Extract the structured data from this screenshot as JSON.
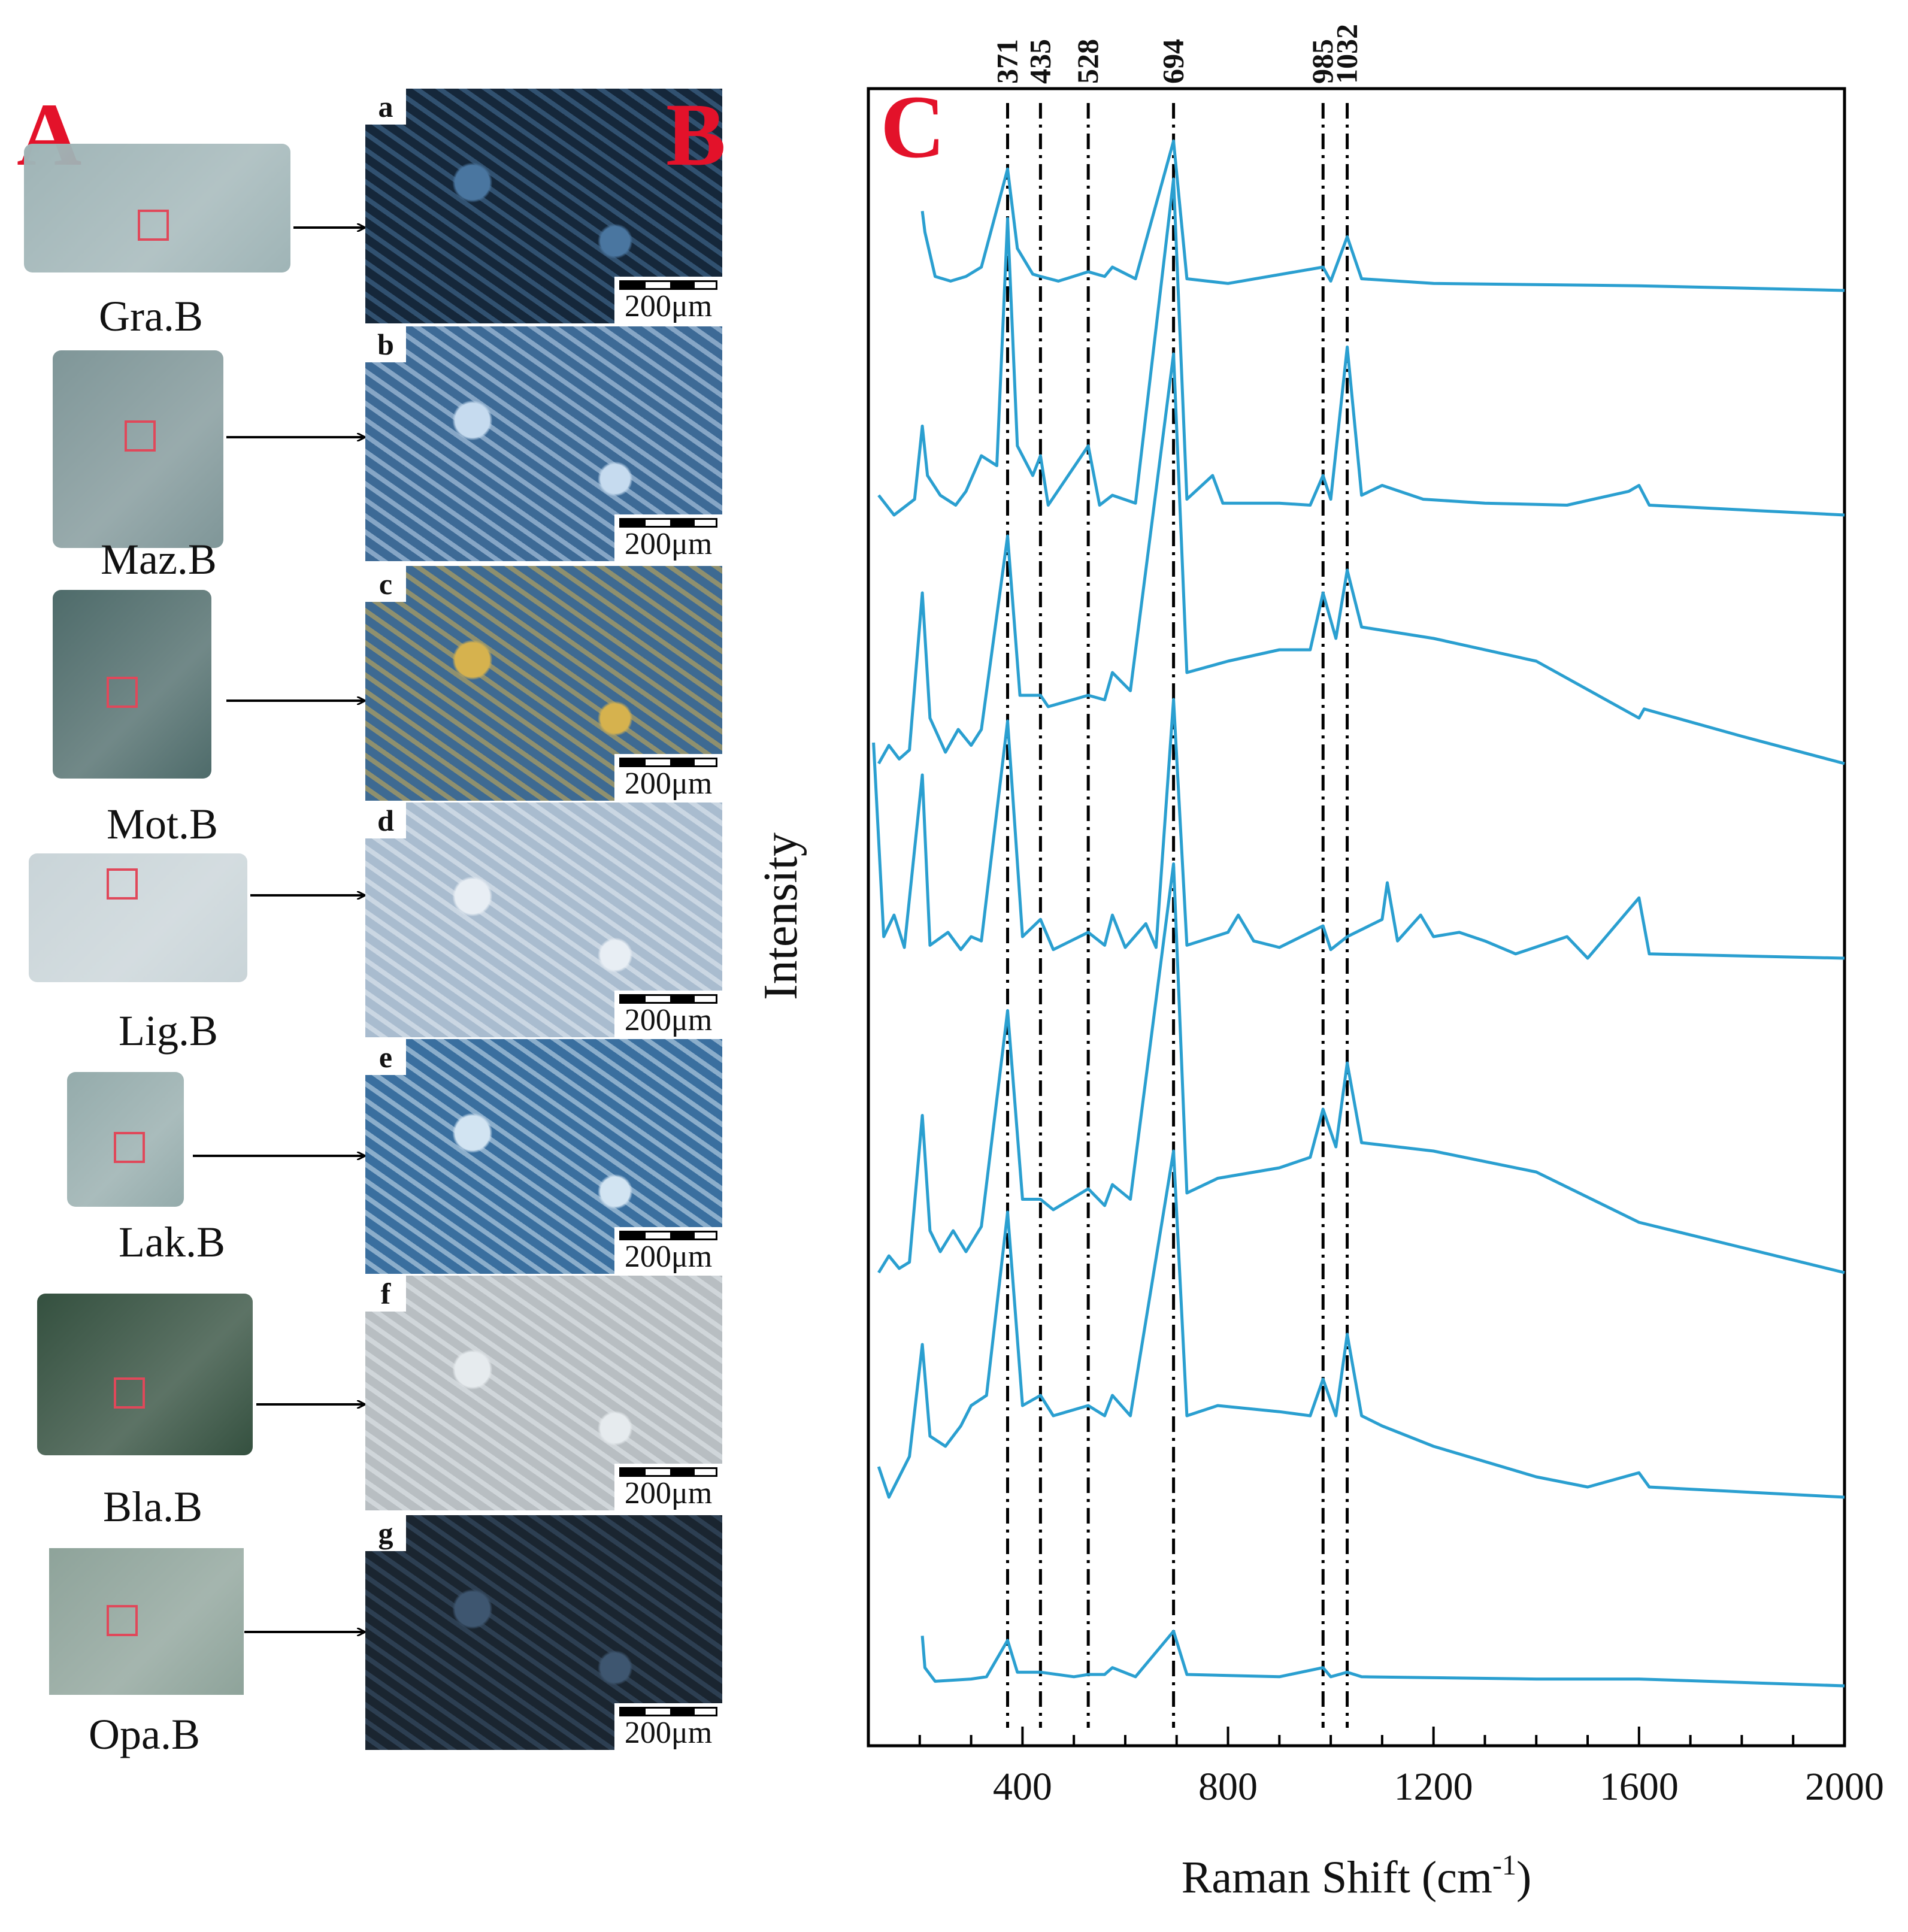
{
  "panel_a": {
    "letter": "A",
    "samples": [
      {
        "label": "Gra.B",
        "color": "#9fb4b6"
      },
      {
        "label": "Maz.B",
        "color": "#7f9698"
      },
      {
        "label": "Mot.B",
        "color": "#4e6b6a"
      },
      {
        "label": "Lig.B",
        "color": "#c9d4d8"
      },
      {
        "label": "Lak.B",
        "color": "#94abab"
      },
      {
        "label": "Bla.B",
        "color": "#34503f"
      },
      {
        "label": "Opa.B",
        "color": "#8ea39a"
      }
    ]
  },
  "panel_b": {
    "letter": "B",
    "scale_label": "200μm",
    "images": [
      {
        "letter": "a",
        "base": "#15273a",
        "accent": "#4a76a0"
      },
      {
        "letter": "b",
        "base": "#3d6a96",
        "accent": "#c6dbef"
      },
      {
        "letter": "c",
        "base": "#3e6a92",
        "accent": "#d6b24e"
      },
      {
        "letter": "d",
        "base": "#a9bccf",
        "accent": "#e8eef4"
      },
      {
        "letter": "e",
        "base": "#3a6f9f",
        "accent": "#d2e4f2"
      },
      {
        "letter": "f",
        "base": "#b8bec2",
        "accent": "#e6ebee"
      },
      {
        "letter": "g",
        "base": "#1a2530",
        "accent": "#3e5670"
      }
    ]
  },
  "chart_data": {
    "type": "line",
    "panel_letter": "C",
    "xlabel": "Raman Shift (cm",
    "xlabel_sup": "-1",
    "xlabel_end": ")",
    "ylabel": "Intensity",
    "xlim": [
      100,
      2000
    ],
    "xticks": [
      400,
      800,
      1200,
      1600,
      2000
    ],
    "reference_lines": [
      371,
      435,
      528,
      694,
      985,
      1032
    ],
    "line_color": "#2a9fd0",
    "series": [
      {
        "offset": 0.0,
        "points": [
          [
            205,
            0.34
          ],
          [
            210,
            0.25
          ],
          [
            230,
            0.06
          ],
          [
            260,
            0.04
          ],
          [
            290,
            0.06
          ],
          [
            320,
            0.1
          ],
          [
            371,
            0.52
          ],
          [
            390,
            0.18
          ],
          [
            420,
            0.07
          ],
          [
            435,
            0.06
          ],
          [
            470,
            0.04
          ],
          [
            528,
            0.08
          ],
          [
            560,
            0.06
          ],
          [
            575,
            0.1
          ],
          [
            620,
            0.05
          ],
          [
            694,
            0.64
          ],
          [
            720,
            0.05
          ],
          [
            800,
            0.03
          ],
          [
            985,
            0.1
          ],
          [
            1000,
            0.04
          ],
          [
            1032,
            0.23
          ],
          [
            1060,
            0.05
          ],
          [
            1200,
            0.03
          ],
          [
            1600,
            0.02
          ],
          [
            2000,
            0.0
          ]
        ]
      },
      {
        "offset": 0.0,
        "points": [
          [
            120,
            0.1
          ],
          [
            150,
            0.0
          ],
          [
            190,
            0.08
          ],
          [
            205,
            0.45
          ],
          [
            215,
            0.2
          ],
          [
            240,
            0.1
          ],
          [
            270,
            0.05
          ],
          [
            290,
            0.12
          ],
          [
            320,
            0.3
          ],
          [
            350,
            0.25
          ],
          [
            371,
            1.5
          ],
          [
            390,
            0.35
          ],
          [
            420,
            0.2
          ],
          [
            435,
            0.3
          ],
          [
            450,
            0.05
          ],
          [
            528,
            0.35
          ],
          [
            550,
            0.05
          ],
          [
            575,
            0.1
          ],
          [
            620,
            0.06
          ],
          [
            694,
            1.7
          ],
          [
            720,
            0.08
          ],
          [
            770,
            0.2
          ],
          [
            790,
            0.06
          ],
          [
            900,
            0.06
          ],
          [
            960,
            0.05
          ],
          [
            985,
            0.2
          ],
          [
            1000,
            0.08
          ],
          [
            1032,
            0.85
          ],
          [
            1060,
            0.1
          ],
          [
            1100,
            0.15
          ],
          [
            1180,
            0.08
          ],
          [
            1300,
            0.06
          ],
          [
            1460,
            0.05
          ],
          [
            1580,
            0.12
          ],
          [
            1600,
            0.15
          ],
          [
            1620,
            0.05
          ],
          [
            2000,
            0.0
          ]
        ]
      },
      {
        "offset": 0.0,
        "points": [
          [
            120,
            0.0
          ],
          [
            140,
            0.08
          ],
          [
            160,
            0.02
          ],
          [
            180,
            0.06
          ],
          [
            205,
            0.75
          ],
          [
            220,
            0.2
          ],
          [
            250,
            0.05
          ],
          [
            275,
            0.15
          ],
          [
            300,
            0.08
          ],
          [
            320,
            0.15
          ],
          [
            371,
            1.0
          ],
          [
            395,
            0.3
          ],
          [
            435,
            0.3
          ],
          [
            450,
            0.25
          ],
          [
            528,
            0.3
          ],
          [
            560,
            0.28
          ],
          [
            575,
            0.4
          ],
          [
            610,
            0.32
          ],
          [
            694,
            1.8
          ],
          [
            720,
            0.4
          ],
          [
            800,
            0.45
          ],
          [
            900,
            0.5
          ],
          [
            960,
            0.5
          ],
          [
            985,
            0.75
          ],
          [
            1010,
            0.55
          ],
          [
            1032,
            0.85
          ],
          [
            1060,
            0.6
          ],
          [
            1200,
            0.55
          ],
          [
            1400,
            0.45
          ],
          [
            1600,
            0.2
          ],
          [
            1610,
            0.24
          ],
          [
            1800,
            0.12
          ],
          [
            2000,
            0.0
          ]
        ]
      },
      {
        "offset": 0.0,
        "points": [
          [
            110,
            1.0
          ],
          [
            130,
            0.1
          ],
          [
            150,
            0.2
          ],
          [
            170,
            0.05
          ],
          [
            205,
            0.85
          ],
          [
            220,
            0.06
          ],
          [
            255,
            0.12
          ],
          [
            280,
            0.04
          ],
          [
            300,
            0.1
          ],
          [
            320,
            0.08
          ],
          [
            371,
            1.1
          ],
          [
            400,
            0.1
          ],
          [
            435,
            0.18
          ],
          [
            460,
            0.04
          ],
          [
            528,
            0.12
          ],
          [
            560,
            0.06
          ],
          [
            575,
            0.2
          ],
          [
            600,
            0.05
          ],
          [
            640,
            0.16
          ],
          [
            660,
            0.05
          ],
          [
            694,
            1.2
          ],
          [
            720,
            0.06
          ],
          [
            800,
            0.12
          ],
          [
            820,
            0.2
          ],
          [
            850,
            0.08
          ],
          [
            900,
            0.05
          ],
          [
            985,
            0.15
          ],
          [
            1000,
            0.04
          ],
          [
            1032,
            0.1
          ],
          [
            1100,
            0.18
          ],
          [
            1110,
            0.35
          ],
          [
            1130,
            0.08
          ],
          [
            1175,
            0.2
          ],
          [
            1200,
            0.1
          ],
          [
            1250,
            0.12
          ],
          [
            1300,
            0.08
          ],
          [
            1360,
            0.02
          ],
          [
            1460,
            0.1
          ],
          [
            1500,
            0.0
          ],
          [
            1600,
            0.28
          ],
          [
            1620,
            0.02
          ],
          [
            2000,
            0.0
          ]
        ]
      },
      {
        "offset": 0.0,
        "points": [
          [
            120,
            0.0
          ],
          [
            140,
            0.08
          ],
          [
            160,
            0.02
          ],
          [
            180,
            0.05
          ],
          [
            205,
            0.75
          ],
          [
            220,
            0.2
          ],
          [
            240,
            0.1
          ],
          [
            265,
            0.2
          ],
          [
            290,
            0.1
          ],
          [
            320,
            0.22
          ],
          [
            371,
            1.25
          ],
          [
            400,
            0.35
          ],
          [
            435,
            0.35
          ],
          [
            460,
            0.3
          ],
          [
            528,
            0.4
          ],
          [
            560,
            0.32
          ],
          [
            575,
            0.42
          ],
          [
            610,
            0.35
          ],
          [
            694,
            1.95
          ],
          [
            720,
            0.38
          ],
          [
            780,
            0.45
          ],
          [
            900,
            0.5
          ],
          [
            960,
            0.55
          ],
          [
            985,
            0.78
          ],
          [
            1010,
            0.6
          ],
          [
            1032,
            1.0
          ],
          [
            1060,
            0.62
          ],
          [
            1200,
            0.58
          ],
          [
            1400,
            0.48
          ],
          [
            1600,
            0.24
          ],
          [
            1800,
            0.12
          ],
          [
            2000,
            0.0
          ]
        ]
      },
      {
        "offset": 0.0,
        "points": [
          [
            120,
            0.15
          ],
          [
            140,
            0.0
          ],
          [
            160,
            0.1
          ],
          [
            180,
            0.2
          ],
          [
            205,
            0.75
          ],
          [
            220,
            0.3
          ],
          [
            250,
            0.25
          ],
          [
            280,
            0.35
          ],
          [
            300,
            0.45
          ],
          [
            330,
            0.5
          ],
          [
            371,
            1.4
          ],
          [
            400,
            0.45
          ],
          [
            435,
            0.5
          ],
          [
            460,
            0.4
          ],
          [
            528,
            0.45
          ],
          [
            560,
            0.4
          ],
          [
            575,
            0.5
          ],
          [
            610,
            0.4
          ],
          [
            694,
            1.7
          ],
          [
            720,
            0.4
          ],
          [
            780,
            0.45
          ],
          [
            900,
            0.42
          ],
          [
            960,
            0.4
          ],
          [
            985,
            0.58
          ],
          [
            1010,
            0.4
          ],
          [
            1032,
            0.8
          ],
          [
            1060,
            0.4
          ],
          [
            1100,
            0.35
          ],
          [
            1200,
            0.25
          ],
          [
            1400,
            0.1
          ],
          [
            1500,
            0.05
          ],
          [
            1600,
            0.12
          ],
          [
            1620,
            0.05
          ],
          [
            2000,
            0.0
          ]
        ]
      },
      {
        "offset": 0.0,
        "points": [
          [
            205,
            0.22
          ],
          [
            210,
            0.08
          ],
          [
            230,
            0.02
          ],
          [
            300,
            0.03
          ],
          [
            330,
            0.04
          ],
          [
            371,
            0.2
          ],
          [
            390,
            0.06
          ],
          [
            435,
            0.06
          ],
          [
            500,
            0.04
          ],
          [
            528,
            0.05
          ],
          [
            560,
            0.05
          ],
          [
            575,
            0.08
          ],
          [
            620,
            0.04
          ],
          [
            694,
            0.24
          ],
          [
            720,
            0.05
          ],
          [
            900,
            0.04
          ],
          [
            985,
            0.08
          ],
          [
            1000,
            0.04
          ],
          [
            1032,
            0.06
          ],
          [
            1060,
            0.04
          ],
          [
            1400,
            0.03
          ],
          [
            1600,
            0.03
          ],
          [
            2000,
            0.0
          ]
        ]
      }
    ]
  }
}
